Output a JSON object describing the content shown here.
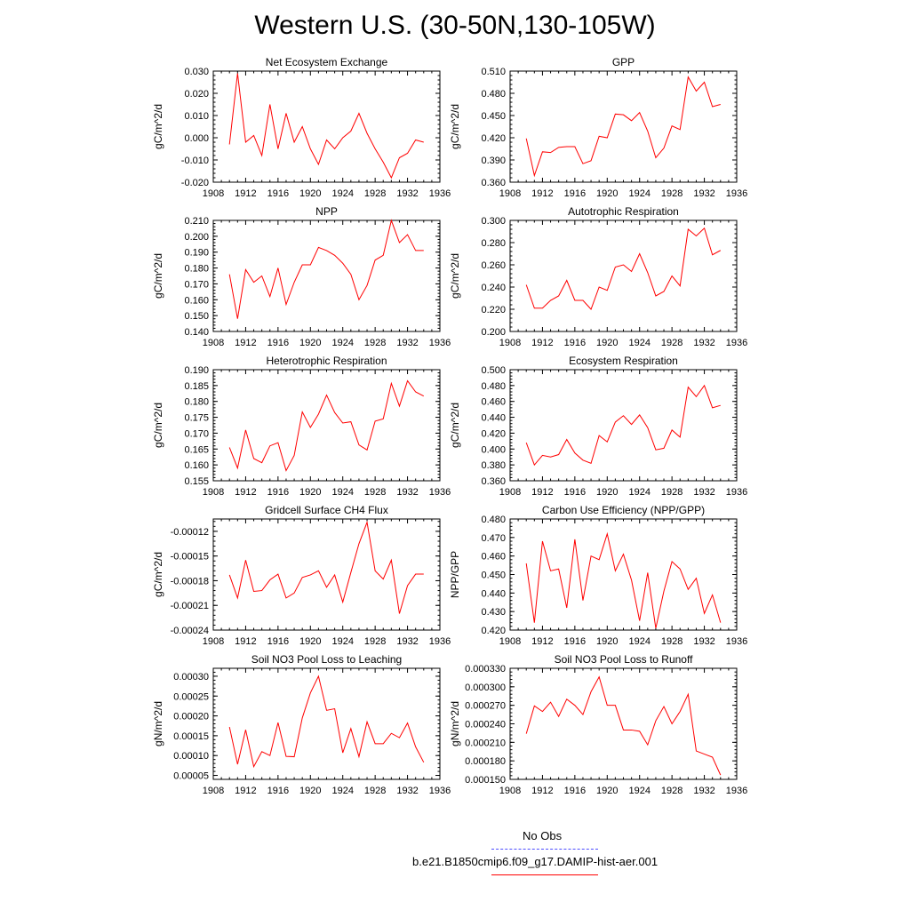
{
  "figure": {
    "title": "Western U.S. (30-50N,130-105W)"
  },
  "colors": {
    "model": "#ff0000",
    "obs": "#4d4dff"
  },
  "legend": {
    "obs_label": "No Obs",
    "model_label": "b.e21.B1850cmip6.f09_g17.DAMIP-hist-aer.001"
  },
  "chart_data": [
    {
      "type": "line",
      "title": "Net Ecosystem Exchange",
      "ylabel": "gC/m^2/d",
      "xlim": [
        1908,
        1936
      ],
      "x_ticks": [
        "1908",
        "1912",
        "1916",
        "1920",
        "1924",
        "1928",
        "1932",
        "1936"
      ],
      "ylim": [
        -0.02,
        0.03
      ],
      "y_ticks": [
        "-0.020",
        "-0.010",
        "0.000",
        "0.010",
        "0.020",
        "0.030"
      ],
      "series": [
        {
          "x": [
            1910,
            1911,
            1912,
            1913,
            1914,
            1915,
            1916,
            1917,
            1918,
            1919,
            1920,
            1921,
            1922,
            1923,
            1924,
            1925,
            1926,
            1927,
            1928,
            1929,
            1930,
            1931,
            1932,
            1933,
            1934
          ],
          "values": [
            -0.003,
            0.029,
            -0.002,
            0.001,
            -0.008,
            0.015,
            -0.005,
            0.011,
            -0.002,
            0.005,
            -0.005,
            -0.012,
            -0.001,
            -0.005,
            0.0,
            0.003,
            0.011,
            0.002,
            -0.005,
            -0.011,
            -0.018,
            -0.009,
            -0.007,
            -0.001,
            -0.002
          ]
        }
      ]
    },
    {
      "type": "line",
      "title": "GPP",
      "ylabel": "gC/m^2/d",
      "xlim": [
        1908,
        1936
      ],
      "x_ticks": [
        "1908",
        "1912",
        "1916",
        "1920",
        "1924",
        "1928",
        "1932",
        "1936"
      ],
      "ylim": [
        0.36,
        0.51
      ],
      "y_ticks": [
        "0.360",
        "0.390",
        "0.420",
        "0.450",
        "0.480",
        "0.510"
      ],
      "series": [
        {
          "x": [
            1910,
            1911,
            1912,
            1913,
            1914,
            1915,
            1916,
            1917,
            1918,
            1919,
            1920,
            1921,
            1922,
            1923,
            1924,
            1925,
            1926,
            1927,
            1928,
            1929,
            1930,
            1931,
            1932,
            1933,
            1934
          ],
          "values": [
            0.419,
            0.369,
            0.401,
            0.4,
            0.407,
            0.408,
            0.408,
            0.385,
            0.389,
            0.422,
            0.42,
            0.452,
            0.451,
            0.443,
            0.454,
            0.429,
            0.393,
            0.406,
            0.436,
            0.431,
            0.502,
            0.483,
            0.495,
            0.462,
            0.465
          ]
        }
      ]
    },
    {
      "type": "line",
      "title": "NPP",
      "ylabel": "gC/m^2/d",
      "xlim": [
        1908,
        1936
      ],
      "x_ticks": [
        "1908",
        "1912",
        "1916",
        "1920",
        "1924",
        "1928",
        "1932",
        "1936"
      ],
      "ylim": [
        0.14,
        0.21
      ],
      "y_ticks": [
        "0.140",
        "0.150",
        "0.160",
        "0.170",
        "0.180",
        "0.190",
        "0.200",
        "0.210"
      ],
      "series": [
        {
          "x": [
            1910,
            1911,
            1912,
            1913,
            1914,
            1915,
            1916,
            1917,
            1918,
            1919,
            1920,
            1921,
            1922,
            1923,
            1924,
            1925,
            1926,
            1927,
            1928,
            1929,
            1930,
            1931,
            1932,
            1933,
            1934
          ],
          "values": [
            0.176,
            0.148,
            0.179,
            0.171,
            0.175,
            0.162,
            0.18,
            0.157,
            0.171,
            0.182,
            0.182,
            0.193,
            0.191,
            0.188,
            0.183,
            0.176,
            0.16,
            0.169,
            0.185,
            0.188,
            0.21,
            0.196,
            0.201,
            0.191,
            0.191
          ]
        }
      ]
    },
    {
      "type": "line",
      "title": "Autotrophic Respiration",
      "ylabel": "gC/m^2/d",
      "xlim": [
        1908,
        1936
      ],
      "x_ticks": [
        "1908",
        "1912",
        "1916",
        "1920",
        "1924",
        "1928",
        "1932",
        "1936"
      ],
      "ylim": [
        0.2,
        0.3
      ],
      "y_ticks": [
        "0.200",
        "0.220",
        "0.240",
        "0.260",
        "0.280",
        "0.300"
      ],
      "series": [
        {
          "x": [
            1910,
            1911,
            1912,
            1913,
            1914,
            1915,
            1916,
            1917,
            1918,
            1919,
            1920,
            1921,
            1922,
            1923,
            1924,
            1925,
            1926,
            1927,
            1928,
            1929,
            1930,
            1931,
            1932,
            1933,
            1934
          ],
          "values": [
            0.242,
            0.221,
            0.221,
            0.228,
            0.232,
            0.246,
            0.228,
            0.228,
            0.22,
            0.24,
            0.237,
            0.258,
            0.26,
            0.254,
            0.27,
            0.253,
            0.232,
            0.236,
            0.25,
            0.241,
            0.292,
            0.286,
            0.293,
            0.269,
            0.273
          ]
        }
      ]
    },
    {
      "type": "line",
      "title": "Heterotrophic Respiration",
      "ylabel": "gC/m^2/d",
      "xlim": [
        1908,
        1936
      ],
      "x_ticks": [
        "1908",
        "1912",
        "1916",
        "1920",
        "1924",
        "1928",
        "1932",
        "1936"
      ],
      "ylim": [
        0.155,
        0.19
      ],
      "y_ticks": [
        "0.155",
        "0.160",
        "0.165",
        "0.170",
        "0.175",
        "0.180",
        "0.185",
        "0.190"
      ],
      "series": [
        {
          "x": [
            1910,
            1911,
            1912,
            1913,
            1914,
            1915,
            1916,
            1917,
            1918,
            1919,
            1920,
            1921,
            1922,
            1923,
            1924,
            1925,
            1926,
            1927,
            1928,
            1929,
            1930,
            1931,
            1932,
            1933,
            1934
          ],
          "values": [
            0.1655,
            0.159,
            0.171,
            0.162,
            0.1607,
            0.166,
            0.167,
            0.1582,
            0.163,
            0.1767,
            0.1718,
            0.176,
            0.182,
            0.1765,
            0.1732,
            0.1736,
            0.1663,
            0.1647,
            0.1738,
            0.1745,
            0.1857,
            0.1785,
            0.1865,
            0.183,
            0.1817
          ]
        }
      ]
    },
    {
      "type": "line",
      "title": "Ecosystem Respiration",
      "ylabel": "gC/m^2/d",
      "xlim": [
        1908,
        1936
      ],
      "x_ticks": [
        "1908",
        "1912",
        "1916",
        "1920",
        "1924",
        "1928",
        "1932",
        "1936"
      ],
      "ylim": [
        0.36,
        0.5
      ],
      "y_ticks": [
        "0.360",
        "0.380",
        "0.400",
        "0.420",
        "0.440",
        "0.460",
        "0.480",
        "0.500"
      ],
      "series": [
        {
          "x": [
            1910,
            1911,
            1912,
            1913,
            1914,
            1915,
            1916,
            1917,
            1918,
            1919,
            1920,
            1921,
            1922,
            1923,
            1924,
            1925,
            1926,
            1927,
            1928,
            1929,
            1930,
            1931,
            1932,
            1933,
            1934
          ],
          "values": [
            0.408,
            0.38,
            0.392,
            0.39,
            0.393,
            0.412,
            0.395,
            0.386,
            0.382,
            0.417,
            0.409,
            0.434,
            0.442,
            0.431,
            0.443,
            0.427,
            0.399,
            0.401,
            0.424,
            0.415,
            0.478,
            0.466,
            0.48,
            0.452,
            0.455
          ]
        }
      ]
    },
    {
      "type": "line",
      "title": "Gridcell Surface CH4 Flux",
      "ylabel": "gC/m^2/d",
      "xlim": [
        1908,
        1936
      ],
      "x_ticks": [
        "1908",
        "1912",
        "1916",
        "1920",
        "1924",
        "1928",
        "1932",
        "1936"
      ],
      "ylim": [
        -0.00024,
        -0.000105
      ],
      "y_ticks": [
        "-0.00024",
        "-0.00021",
        "-0.00018",
        "-0.00015",
        "-0.00012"
      ],
      "series": [
        {
          "x": [
            1910,
            1911,
            1912,
            1913,
            1914,
            1915,
            1916,
            1917,
            1918,
            1919,
            1920,
            1921,
            1922,
            1923,
            1924,
            1925,
            1926,
            1927,
            1928,
            1929,
            1930,
            1931,
            1932,
            1933,
            1934
          ],
          "values": [
            -0.000173,
            -0.000201,
            -0.000155,
            -0.000193,
            -0.000192,
            -0.000179,
            -0.000172,
            -0.000201,
            -0.000195,
            -0.000176,
            -0.000173,
            -0.000168,
            -0.000188,
            -0.000173,
            -0.000206,
            -0.00017,
            -0.000135,
            -0.000109,
            -0.000168,
            -0.000178,
            -0.000155,
            -0.00022,
            -0.000186,
            -0.000172,
            -0.000172
          ]
        }
      ]
    },
    {
      "type": "line",
      "title": "Carbon Use Efficiency (NPP/GPP)",
      "ylabel": "NPP/GPP",
      "xlim": [
        1908,
        1936
      ],
      "x_ticks": [
        "1908",
        "1912",
        "1916",
        "1920",
        "1924",
        "1928",
        "1932",
        "1936"
      ],
      "ylim": [
        0.42,
        0.48
      ],
      "y_ticks": [
        "0.420",
        "0.430",
        "0.440",
        "0.450",
        "0.460",
        "0.470",
        "0.480"
      ],
      "series": [
        {
          "x": [
            1910,
            1911,
            1912,
            1913,
            1914,
            1915,
            1916,
            1917,
            1918,
            1919,
            1920,
            1921,
            1922,
            1923,
            1924,
            1925,
            1926,
            1927,
            1928,
            1929,
            1930,
            1931,
            1932,
            1933,
            1934
          ],
          "values": [
            0.456,
            0.424,
            0.468,
            0.452,
            0.453,
            0.432,
            0.469,
            0.436,
            0.46,
            0.458,
            0.472,
            0.452,
            0.461,
            0.447,
            0.425,
            0.451,
            0.421,
            0.441,
            0.457,
            0.453,
            0.442,
            0.448,
            0.429,
            0.439,
            0.424
          ]
        }
      ]
    },
    {
      "type": "line",
      "title": "Soil NO3 Pool Loss to Leaching",
      "ylabel": "gN/m^2/d",
      "xlim": [
        1908,
        1936
      ],
      "x_ticks": [
        "1908",
        "1912",
        "1916",
        "1920",
        "1924",
        "1928",
        "1932",
        "1936"
      ],
      "ylim": [
        4e-05,
        0.00032
      ],
      "y_ticks": [
        "0.00005",
        "0.00010",
        "0.00015",
        "0.00020",
        "0.00025",
        "0.00030"
      ],
      "series": [
        {
          "x": [
            1910,
            1911,
            1912,
            1913,
            1914,
            1915,
            1916,
            1917,
            1918,
            1919,
            1920,
            1921,
            1922,
            1923,
            1924,
            1925,
            1926,
            1927,
            1928,
            1929,
            1930,
            1931,
            1932,
            1933,
            1934
          ],
          "values": [
            0.000172,
            7.8e-05,
            0.000165,
            7.2e-05,
            0.00011,
            0.0001,
            0.000183,
            9.8e-05,
            9.7e-05,
            0.000195,
            0.000258,
            0.0003,
            0.000214,
            0.000218,
            0.000107,
            0.000168,
            9.7e-05,
            0.000185,
            0.00013,
            0.00013,
            0.000156,
            0.000145,
            0.000182,
            0.000122,
            8.3e-05
          ]
        }
      ]
    },
    {
      "type": "line",
      "title": "Soil NO3 Pool Loss to Runoff",
      "ylabel": "gN/m^2/d",
      "xlim": [
        1908,
        1936
      ],
      "x_ticks": [
        "1908",
        "1912",
        "1916",
        "1920",
        "1924",
        "1928",
        "1932",
        "1936"
      ],
      "ylim": [
        0.00015,
        0.00033
      ],
      "y_ticks": [
        "0.000150",
        "0.000180",
        "0.000210",
        "0.000240",
        "0.000270",
        "0.000300",
        "0.000330"
      ],
      "series": [
        {
          "x": [
            1910,
            1911,
            1912,
            1913,
            1914,
            1915,
            1916,
            1917,
            1918,
            1919,
            1920,
            1921,
            1922,
            1923,
            1924,
            1925,
            1926,
            1927,
            1928,
            1929,
            1930,
            1931,
            1932,
            1933,
            1934
          ],
          "values": [
            0.000224,
            0.000269,
            0.00026,
            0.000275,
            0.000252,
            0.00028,
            0.00027,
            0.000255,
            0.000292,
            0.000316,
            0.00027,
            0.00027,
            0.00023,
            0.00023,
            0.000228,
            0.000206,
            0.000245,
            0.000268,
            0.00024,
            0.00026,
            0.000288,
            0.000196,
            0.000191,
            0.000186,
            0.000157
          ]
        }
      ]
    }
  ]
}
